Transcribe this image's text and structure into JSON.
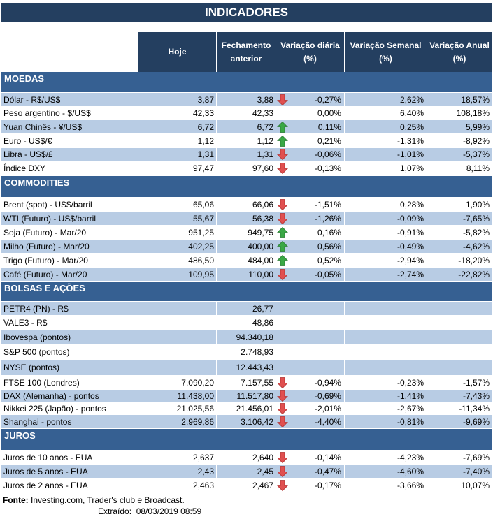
{
  "title": "INDICADORES",
  "columns": [
    "Hoje",
    "Fechamento anterior",
    "Variação diária (%)",
    "Variação Semanal (%)",
    "Variação Anual (%)"
  ],
  "colors": {
    "title_bg": "#243f60",
    "section_bg": "#366092",
    "row_shade": "#b8cce4",
    "arrow_down": "#e05050",
    "arrow_up": "#3aa845"
  },
  "sections": [
    {
      "name": "MOEDAS",
      "rows": [
        {
          "label": "Dólar - R$/US$",
          "hoje": "3,87",
          "fechamento": "3,88",
          "trend": "down",
          "diaria": "-0,27%",
          "semanal": "2,62%",
          "anual": "18,57%"
        },
        {
          "label": "Peso argentino - $/US$",
          "hoje": "42,33",
          "fechamento": "42,33",
          "trend": "",
          "diaria": "0,00%",
          "semanal": "6,40%",
          "anual": "108,18%"
        },
        {
          "label": "Yuan Chinês - ¥/US$",
          "hoje": "6,72",
          "fechamento": "6,72",
          "trend": "up",
          "diaria": "0,11%",
          "semanal": "0,25%",
          "anual": "5,99%"
        },
        {
          "label": "Euro - US$/€",
          "hoje": "1,12",
          "fechamento": "1,12",
          "trend": "up",
          "diaria": "0,21%",
          "semanal": "-1,31%",
          "anual": "-8,92%"
        },
        {
          "label": "Libra - US$/£",
          "hoje": "1,31",
          "fechamento": "1,31",
          "trend": "down",
          "diaria": "-0,06%",
          "semanal": "-1,01%",
          "anual": "-5,37%"
        },
        {
          "label": "Índice DXY",
          "hoje": "97,47",
          "fechamento": "97,60",
          "trend": "down",
          "diaria": "-0,13%",
          "semanal": "1,07%",
          "anual": "8,11%"
        }
      ]
    },
    {
      "name": "COMMODITIES",
      "rows": [
        {
          "label": "Brent (spot) - US$/barril",
          "hoje": "65,06",
          "fechamento": "66,06",
          "trend": "down",
          "diaria": "-1,51%",
          "semanal": "0,28%",
          "anual": "1,90%"
        },
        {
          "label": "WTI (Futuro) - US$/barril",
          "hoje": "55,67",
          "fechamento": "56,38",
          "trend": "down",
          "diaria": "-1,26%",
          "semanal": "-0,09%",
          "anual": "-7,65%"
        },
        {
          "label": "Soja (Futuro) - Mar/20",
          "hoje": "951,25",
          "fechamento": "949,75",
          "trend": "up",
          "diaria": "0,16%",
          "semanal": "-0,91%",
          "anual": "-5,82%"
        },
        {
          "label": "Milho (Futuro) - Mar/20",
          "hoje": "402,25",
          "fechamento": "400,00",
          "trend": "up",
          "diaria": "0,56%",
          "semanal": "-0,49%",
          "anual": "-4,62%"
        },
        {
          "label": "Trigo (Futuro) - Mar/20",
          "hoje": "486,50",
          "fechamento": "484,00",
          "trend": "up",
          "diaria": "0,52%",
          "semanal": "-2,94%",
          "anual": "-18,20%"
        },
        {
          "label": "Café (Futuro) - Mar/20",
          "hoje": "109,95",
          "fechamento": "110,00",
          "trend": "down",
          "diaria": "-0,05%",
          "semanal": "-2,74%",
          "anual": "-22,82%"
        }
      ]
    },
    {
      "name": "BOLSAS E AÇÕES",
      "rows": [
        {
          "label": "PETR4 (PN) - R$",
          "hoje": "",
          "fechamento": "26,77",
          "trend": "",
          "diaria": "",
          "semanal": "",
          "anual": ""
        },
        {
          "label": "VALE3 - R$",
          "hoje": "",
          "fechamento": "48,86",
          "trend": "",
          "diaria": "",
          "semanal": "",
          "anual": ""
        },
        {
          "label": "Ibovespa (pontos)",
          "hoje": "",
          "fechamento": "94.340,18",
          "trend": "",
          "diaria": "",
          "semanal": "",
          "anual": ""
        },
        {
          "label": "S&P 500 (pontos)",
          "hoje": "",
          "fechamento": "2.748,93",
          "trend": "",
          "diaria": "",
          "semanal": "",
          "anual": ""
        },
        {
          "label": "NYSE (pontos)",
          "hoje": "",
          "fechamento": "12.443,43",
          "trend": "",
          "diaria": "",
          "semanal": "",
          "anual": ""
        },
        {
          "label": "FTSE 100 (Londres)",
          "hoje": "7.090,20",
          "fechamento": "7.157,55",
          "trend": "down",
          "diaria": "-0,94%",
          "semanal": "-0,23%",
          "anual": "-1,57%"
        },
        {
          "label": "DAX (Alemanha) - pontos",
          "hoje": "11.438,00",
          "fechamento": "11.517,80",
          "trend": "down",
          "diaria": "-0,69%",
          "semanal": "-1,41%",
          "anual": "-7,43%"
        },
        {
          "label": "Nikkei 225 (Japão) - pontos",
          "hoje": "21.025,56",
          "fechamento": "21.456,01",
          "trend": "down",
          "diaria": "-2,01%",
          "semanal": "-2,67%",
          "anual": "-11,34%"
        },
        {
          "label": "Shanghai - pontos",
          "hoje": "2.969,86",
          "fechamento": "3.106,42",
          "trend": "down",
          "diaria": "-4,40%",
          "semanal": "-0,81%",
          "anual": "-9,69%"
        }
      ]
    },
    {
      "name": "JUROS",
      "rows": [
        {
          "label": "Juros de 10 anos - EUA",
          "hoje": "2,637",
          "fechamento": "2,640",
          "trend": "down",
          "diaria": "-0,14%",
          "semanal": "-4,23%",
          "anual": "-7,69%"
        },
        {
          "label": "Juros de 5 anos - EUA",
          "hoje": "2,43",
          "fechamento": "2,45",
          "trend": "down",
          "diaria": "-0,47%",
          "semanal": "-4,60%",
          "anual": "-7,40%"
        },
        {
          "label": "Juros de 2 anos - EUA",
          "hoje": "2,463",
          "fechamento": "2,467",
          "trend": "down",
          "diaria": "-0,17%",
          "semanal": "-3,66%",
          "anual": "10,07%"
        }
      ]
    }
  ],
  "footer": {
    "source_label": "Fonte:",
    "source_text": " Investing.com, Trader's club e Broadcast.",
    "extracted_label": "Extraído:",
    "extracted_value": "08/03/2019 08:59"
  }
}
